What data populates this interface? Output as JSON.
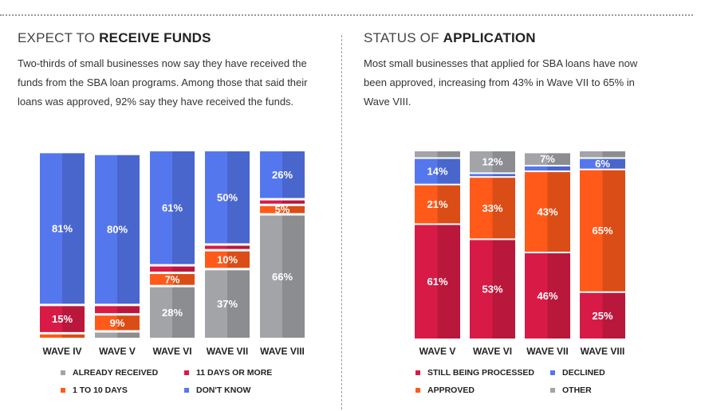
{
  "left_panel": {
    "title_prefix": "EXPECT TO",
    "title_strong": "RECEIVE FUNDS",
    "description": "Two-thirds of small businesses now say they have received the funds from the SBA loan programs. Among those that said their loans was approved, 92% say they have received the funds."
  },
  "right_panel": {
    "title_prefix": "STATUS OF",
    "title_strong": "APPLICATION",
    "description": "Most small businesses that applied for SBA loans have now been approved, increasing from 43% in Wave VII to 65% in Wave VIII."
  },
  "colors": {
    "already_received": "#a3a4a8",
    "one_to_ten_days": "#ff5a1a",
    "eleven_plus_days": "#d81b46",
    "dont_know": "#5577ee",
    "still_processing": "#d81b46",
    "approved": "#ff5a1a",
    "declined": "#5577ee",
    "other": "#a3a4a8"
  },
  "chart_data": [
    {
      "type": "bar",
      "stacked": true,
      "categories": [
        "WAVE IV",
        "WAVE V",
        "WAVE VI",
        "WAVE VII",
        "WAVE VIII"
      ],
      "ylim": [
        0,
        100
      ],
      "series": [
        {
          "name": "ALREADY RECEIVED",
          "color_key": "already_received",
          "values": [
            0,
            4,
            28,
            37,
            66
          ],
          "labels": [
            "",
            "",
            "28%",
            "37%",
            "66%"
          ]
        },
        {
          "name": "1 TO 10 DAYS",
          "color_key": "one_to_ten_days",
          "values": [
            3,
            9,
            7,
            10,
            5
          ],
          "labels": [
            "",
            "9%",
            "7%",
            "10%",
            "5%"
          ]
        },
        {
          "name": "11 DAYS OR MORE",
          "color_key": "eleven_plus_days",
          "values": [
            15,
            5,
            4,
            3,
            3
          ],
          "labels": [
            "15%",
            "",
            "",
            "",
            ""
          ]
        },
        {
          "name": "DON'T KNOW",
          "color_key": "dont_know",
          "values": [
            81,
            80,
            61,
            50,
            26
          ],
          "labels": [
            "81%",
            "80%",
            "61%",
            "50%",
            "26%"
          ]
        }
      ],
      "legend": [
        {
          "name": "ALREADY RECEIVED",
          "color_key": "already_received"
        },
        {
          "name": "11 DAYS OR MORE",
          "color_key": "eleven_plus_days"
        },
        {
          "name": "1 TO 10 DAYS",
          "color_key": "one_to_ten_days"
        },
        {
          "name": "DON'T KNOW",
          "color_key": "dont_know"
        }
      ],
      "legend_position": "bottom"
    },
    {
      "type": "bar",
      "stacked": true,
      "categories": [
        "WAVE V",
        "WAVE VI",
        "WAVE VII",
        "WAVE VIII"
      ],
      "ylim": [
        0,
        100
      ],
      "series": [
        {
          "name": "STILL BEING PROCESSED",
          "color_key": "still_processing",
          "values": [
            61,
            53,
            46,
            25
          ],
          "labels": [
            "61%",
            "53%",
            "46%",
            "25%"
          ]
        },
        {
          "name": "APPROVED",
          "color_key": "approved",
          "values": [
            21,
            33,
            43,
            65
          ],
          "labels": [
            "21%",
            "33%",
            "43%",
            "65%"
          ]
        },
        {
          "name": "DECLINED",
          "color_key": "declined",
          "values": [
            14,
            2,
            3,
            6
          ],
          "labels": [
            "14%",
            "",
            "",
            "6%"
          ]
        },
        {
          "name": "OTHER",
          "color_key": "other",
          "values": [
            4,
            12,
            7,
            4
          ],
          "labels": [
            "",
            "12%",
            "7%",
            ""
          ]
        }
      ],
      "legend": [
        {
          "name": "STILL BEING PROCESSED",
          "color_key": "still_processing"
        },
        {
          "name": "DECLINED",
          "color_key": "declined"
        },
        {
          "name": "APPROVED",
          "color_key": "approved"
        },
        {
          "name": "OTHER",
          "color_key": "other"
        }
      ],
      "legend_position": "bottom"
    }
  ]
}
